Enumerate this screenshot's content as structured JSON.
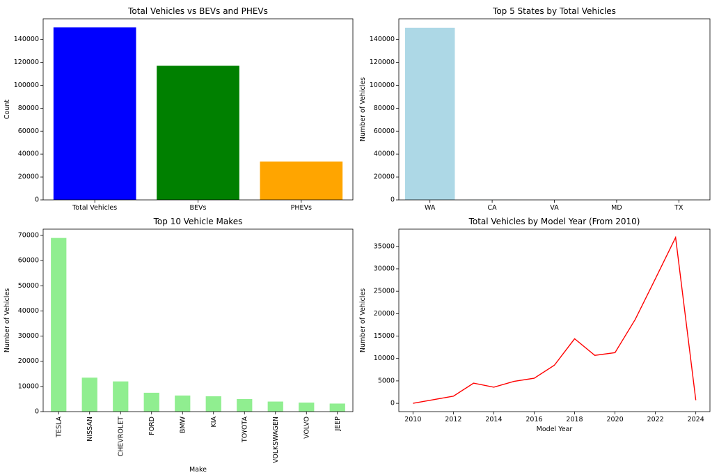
{
  "charts": [
    {
      "type": "bar",
      "title": "Total Vehicles vs BEVs and PHEVs",
      "xlabel": "",
      "ylabel": "Count",
      "categories": [
        "Total Vehicles",
        "BEVs",
        "PHEVs"
      ],
      "values": [
        150500,
        117000,
        33500
      ],
      "colors": [
        "#0000ff",
        "#008000",
        "#ffa500"
      ],
      "ylim": [
        0,
        158000
      ],
      "yticks": [
        0,
        20000,
        40000,
        60000,
        80000,
        100000,
        120000,
        140000
      ]
    },
    {
      "type": "bar",
      "title": "Top 5 States by Total Vehicles",
      "xlabel": "",
      "ylabel": "Number of Vehicles",
      "categories": [
        "WA",
        "CA",
        "VA",
        "MD",
        "TX"
      ],
      "values": [
        150200,
        90,
        40,
        30,
        25
      ],
      "colors": [
        "#add8e6"
      ],
      "ylim": [
        0,
        158000
      ],
      "yticks": [
        0,
        20000,
        40000,
        60000,
        80000,
        100000,
        120000,
        140000
      ]
    },
    {
      "type": "bar",
      "title": "Top 10 Vehicle Makes",
      "xlabel": "Make",
      "ylabel": "Number of Vehicles",
      "categories": [
        "TESLA",
        "NISSAN",
        "CHEVROLET",
        "FORD",
        "BMW",
        "KIA",
        "TOYOTA",
        "VOLKSWAGEN",
        "VOLVO",
        "JEEP"
      ],
      "values": [
        69000,
        13500,
        12000,
        7500,
        6400,
        6100,
        5000,
        4000,
        3600,
        3200
      ],
      "colors": [
        "#90ee90"
      ],
      "ylim": [
        0,
        72500
      ],
      "yticks": [
        0,
        10000,
        20000,
        30000,
        40000,
        50000,
        60000,
        70000
      ]
    },
    {
      "type": "line",
      "title": "Total Vehicles by Model Year (From 2010)",
      "xlabel": "Model Year",
      "ylabel": "Number of Vehicles",
      "x": [
        2010,
        2011,
        2012,
        2013,
        2014,
        2015,
        2016,
        2017,
        2018,
        2019,
        2020,
        2021,
        2022,
        2023,
        2024
      ],
      "values": [
        0,
        800,
        1600,
        4500,
        3600,
        4900,
        5600,
        8500,
        14400,
        10700,
        11300,
        18700,
        27800,
        37000,
        700
      ],
      "colors": [
        "#ff0000"
      ],
      "xlim": [
        2009.3,
        2024.7
      ],
      "ylim": [
        -1850,
        38850
      ],
      "xticks": [
        2010,
        2012,
        2014,
        2016,
        2018,
        2020,
        2022,
        2024
      ],
      "yticks": [
        0,
        5000,
        10000,
        15000,
        20000,
        25000,
        30000,
        35000
      ]
    }
  ]
}
